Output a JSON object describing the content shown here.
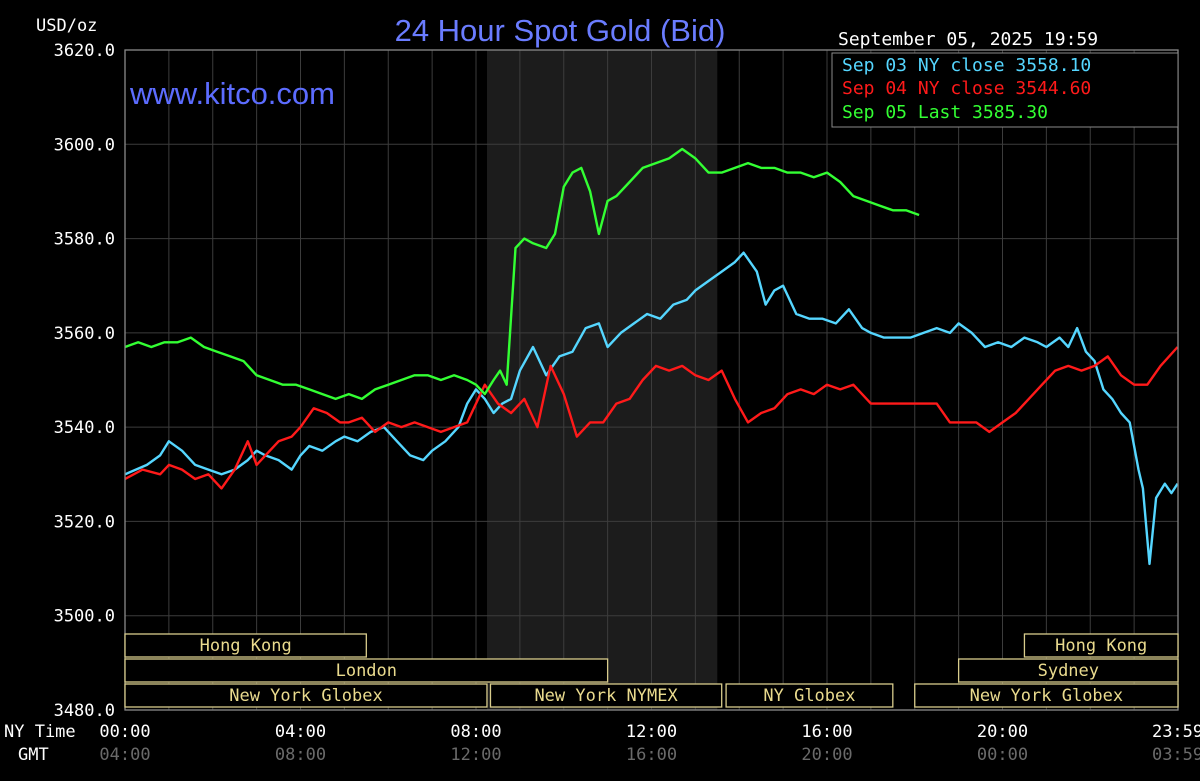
{
  "header": {
    "title": "24 Hour Spot Gold (Bid)",
    "unit": "USD/oz",
    "watermark": "www.kitco.com",
    "timestamp": "September 05, 2025 19:59"
  },
  "legend": {
    "placement": "top-right",
    "items": [
      {
        "label": "Sep 03 NY close 3558.10",
        "color": "#55d6ff"
      },
      {
        "label": "Sep 04 NY close 3544.60",
        "color": "#ff1a1a"
      },
      {
        "label": "Sep 05 Last 3585.30",
        "color": "#33ff33"
      }
    ]
  },
  "sessions": [
    {
      "label": "Hong Kong",
      "row": 0,
      "start": 0.0,
      "end": 5.5
    },
    {
      "label": "Hong Kong",
      "row": 0,
      "start": 20.5,
      "end": 24.0
    },
    {
      "label": "London",
      "row": 1,
      "start": 0.0,
      "end": 11.0
    },
    {
      "label": "Sydney",
      "row": 1,
      "start": 19.0,
      "end": 24.0
    },
    {
      "label": "New York Globex",
      "row": 2,
      "start": 0.0,
      "end": 8.25
    },
    {
      "label": "New York NYMEX",
      "row": 2,
      "start": 8.33,
      "end": 13.6
    },
    {
      "label": "NY Globex",
      "row": 2,
      "start": 13.7,
      "end": 17.5
    },
    {
      "label": "New York Globex",
      "row": 2,
      "start": 18.0,
      "end": 24.0
    }
  ],
  "time_axis": {
    "ny_label": "NY Time",
    "gmt_label": "GMT",
    "ny_ticks": [
      "00:00",
      "04:00",
      "08:00",
      "12:00",
      "16:00",
      "20:00",
      "23:59"
    ],
    "gmt_ticks": [
      "04:00",
      "08:00",
      "12:00",
      "16:00",
      "20:00",
      "00:00",
      "03:59"
    ]
  },
  "chart_data": {
    "type": "line",
    "title": "24 Hour Spot Gold (Bid)",
    "ylabel": "USD/oz",
    "xlabel": "NY Time",
    "xlim": [
      0,
      24
    ],
    "ylim": [
      3480,
      3620
    ],
    "y_ticks": [
      "3620.0",
      "3600.0",
      "3580.0",
      "3560.0",
      "3540.0",
      "3520.0",
      "3500.0",
      "3480.0"
    ],
    "grid": true,
    "shaded_period": [
      8.25,
      13.5
    ],
    "series": [
      {
        "name": "Sep 03 NY close 3558.10",
        "color": "#55d6ff",
        "x": [
          0,
          0.5,
          0.8,
          1.0,
          1.3,
          1.6,
          1.9,
          2.2,
          2.5,
          2.8,
          3.0,
          3.2,
          3.5,
          3.8,
          4.0,
          4.2,
          4.5,
          4.8,
          5.0,
          5.3,
          5.6,
          5.9,
          6.2,
          6.5,
          6.8,
          7.0,
          7.3,
          7.6,
          7.8,
          8.0,
          8.2,
          8.4,
          8.6,
          8.8,
          9.0,
          9.3,
          9.6,
          9.9,
          10.2,
          10.5,
          10.8,
          11.0,
          11.3,
          11.6,
          11.9,
          12.2,
          12.5,
          12.8,
          13.0,
          13.3,
          13.6,
          13.9,
          14.1,
          14.4,
          14.6,
          14.8,
          15.0,
          15.3,
          15.6,
          15.9,
          16.2,
          16.5,
          16.8,
          17.0,
          17.3,
          17.6,
          17.9,
          18.2,
          18.5,
          18.8,
          19.0,
          19.3,
          19.6,
          19.9,
          20.2,
          20.5,
          20.8,
          21.0,
          21.3,
          21.5,
          21.7,
          21.9,
          22.1,
          22.3,
          22.5,
          22.7,
          22.9,
          23.1,
          23.2,
          23.35,
          23.5,
          23.7,
          23.85,
          23.99
        ],
        "y": [
          3530,
          3532,
          3534,
          3537,
          3535,
          3532,
          3531,
          3530,
          3531,
          3533,
          3535,
          3534,
          3533,
          3531,
          3534,
          3536,
          3535,
          3537,
          3538,
          3537,
          3539,
          3540,
          3537,
          3534,
          3533,
          3535,
          3537,
          3540,
          3545,
          3548,
          3546,
          3543,
          3545,
          3546,
          3552,
          3557,
          3551,
          3555,
          3556,
          3561,
          3562,
          3557,
          3560,
          3562,
          3564,
          3563,
          3566,
          3567,
          3569,
          3571,
          3573,
          3575,
          3577,
          3573,
          3566,
          3569,
          3570,
          3564,
          3563,
          3563,
          3562,
          3565,
          3561,
          3560,
          3559,
          3559,
          3559,
          3560,
          3561,
          3560,
          3562,
          3560,
          3557,
          3558,
          3557,
          3559,
          3558,
          3557,
          3559,
          3557,
          3561,
          3556,
          3554,
          3548,
          3546,
          3543,
          3541,
          3531,
          3527,
          3511,
          3525,
          3528,
          3526,
          3528
        ]
      },
      {
        "name": "Sep 04 NY close 3544.60",
        "color": "#ff1a1a",
        "x": [
          0,
          0.4,
          0.8,
          1.0,
          1.3,
          1.6,
          1.9,
          2.2,
          2.5,
          2.8,
          3.0,
          3.2,
          3.5,
          3.8,
          4.0,
          4.3,
          4.6,
          4.9,
          5.1,
          5.4,
          5.7,
          6.0,
          6.3,
          6.6,
          6.9,
          7.2,
          7.5,
          7.8,
          8.0,
          8.2,
          8.5,
          8.8,
          9.1,
          9.4,
          9.7,
          10.0,
          10.3,
          10.6,
          10.9,
          11.2,
          11.5,
          11.8,
          12.1,
          12.4,
          12.7,
          13.0,
          13.3,
          13.6,
          13.9,
          14.2,
          14.5,
          14.8,
          15.1,
          15.4,
          15.7,
          16.0,
          16.3,
          16.6,
          17.0,
          17.4,
          17.8,
          18.2,
          18.5,
          18.8,
          19.1,
          19.4,
          19.7,
          20.0,
          20.3,
          20.6,
          20.9,
          21.2,
          21.5,
          21.8,
          22.1,
          22.4,
          22.7,
          23.0,
          23.3,
          23.6,
          23.99
        ],
        "y": [
          3529,
          3531,
          3530,
          3532,
          3531,
          3529,
          3530,
          3527,
          3531,
          3537,
          3532,
          3534,
          3537,
          3538,
          3540,
          3544,
          3543,
          3541,
          3541,
          3542,
          3539,
          3541,
          3540,
          3541,
          3540,
          3539,
          3540,
          3541,
          3545,
          3549,
          3545,
          3543,
          3546,
          3540,
          3553,
          3547,
          3538,
          3541,
          3541,
          3545,
          3546,
          3550,
          3553,
          3552,
          3553,
          3551,
          3550,
          3552,
          3546,
          3541,
          3543,
          3544,
          3547,
          3548,
          3547,
          3549,
          3548,
          3549,
          3545,
          3545,
          3545,
          3545,
          3545,
          3541,
          3541,
          3541,
          3539,
          3541,
          3543,
          3546,
          3549,
          3552,
          3553,
          3552,
          3553,
          3555,
          3551,
          3549,
          3549,
          3553,
          3557
        ]
      },
      {
        "name": "Sep 05 Last 3585.30",
        "color": "#33ff33",
        "x": [
          0,
          0.3,
          0.6,
          0.9,
          1.2,
          1.5,
          1.8,
          2.1,
          2.4,
          2.7,
          3.0,
          3.3,
          3.6,
          3.9,
          4.2,
          4.5,
          4.8,
          5.1,
          5.4,
          5.7,
          6.0,
          6.3,
          6.6,
          6.9,
          7.2,
          7.5,
          7.8,
          8.0,
          8.2,
          8.4,
          8.55,
          8.7,
          8.9,
          9.1,
          9.3,
          9.6,
          9.8,
          10.0,
          10.2,
          10.4,
          10.6,
          10.8,
          11.0,
          11.2,
          11.5,
          11.8,
          12.1,
          12.4,
          12.7,
          13.0,
          13.3,
          13.6,
          13.9,
          14.2,
          14.5,
          14.8,
          15.1,
          15.4,
          15.7,
          16.0,
          16.3,
          16.6,
          16.9,
          17.2,
          17.5,
          17.8,
          18.1
        ],
        "y": [
          3557,
          3558,
          3557,
          3558,
          3558,
          3559,
          3557,
          3556,
          3555,
          3554,
          3551,
          3550,
          3549,
          3549,
          3548,
          3547,
          3546,
          3547,
          3546,
          3548,
          3549,
          3550,
          3551,
          3551,
          3550,
          3551,
          3550,
          3549,
          3547,
          3550,
          3552,
          3549,
          3578,
          3580,
          3579,
          3578,
          3581,
          3591,
          3594,
          3595,
          3590,
          3581,
          3588,
          3589,
          3592,
          3595,
          3596,
          3597,
          3599,
          3597,
          3594,
          3594,
          3595,
          3596,
          3595,
          3595,
          3594,
          3594,
          3593,
          3594,
          3592,
          3589,
          3588,
          3587,
          3586,
          3586,
          3585
        ]
      }
    ]
  }
}
